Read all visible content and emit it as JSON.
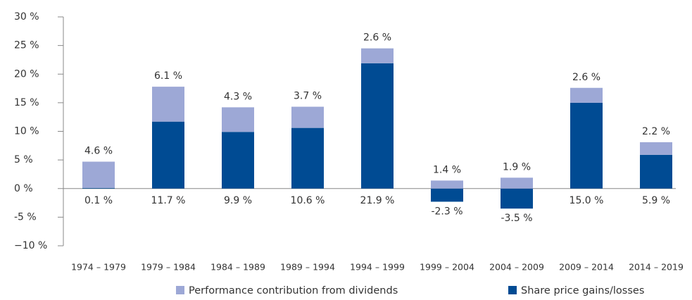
{
  "chart_data": {
    "type": "stacked_bar",
    "categories": [
      "1974 – 1979",
      "1979 – 1984",
      "1984 – 1989",
      "1989 – 1994",
      "1994 – 1999",
      "1999 – 2004",
      "2004 – 2009",
      "2009 – 2014",
      "2014 – 2019"
    ],
    "series": [
      {
        "name": "Share price gains/losses",
        "color": "#004b93",
        "values": [
          0.1,
          11.7,
          9.9,
          10.6,
          21.9,
          -2.3,
          -3.5,
          15.0,
          5.9
        ],
        "value_labels": [
          "0.1 %",
          "11.7 %",
          "9.9 %",
          "10.6 %",
          "21.9 %",
          "-2.3 %",
          "-3.5 %",
          "15.0 %",
          "5.9 %"
        ]
      },
      {
        "name": "Performance contribution from dividends",
        "color": "#9da8d6",
        "values": [
          4.6,
          6.1,
          4.3,
          3.7,
          2.6,
          1.4,
          1.9,
          2.6,
          2.2
        ],
        "value_labels": [
          "4.6 %",
          "6.1 %",
          "4.3 %",
          "3.7 %",
          "2.6 %",
          "1.4 %",
          "1.9 %",
          "2.6 %",
          "2.2 %"
        ]
      }
    ],
    "ylim": [
      -10,
      30
    ],
    "yticks": [
      {
        "value": -10,
        "label": "−10 %"
      },
      {
        "value": -5,
        "label": "-5 %"
      },
      {
        "value": 0,
        "label": "0 %"
      },
      {
        "value": 5,
        "label": "5 %"
      },
      {
        "value": 10,
        "label": "10 %"
      },
      {
        "value": 15,
        "label": "15 %"
      },
      {
        "value": 20,
        "label": "20 %"
      },
      {
        "value": 25,
        "label": "25 %"
      },
      {
        "value": 30,
        "label": "30 %"
      }
    ],
    "legend": "bottom"
  }
}
